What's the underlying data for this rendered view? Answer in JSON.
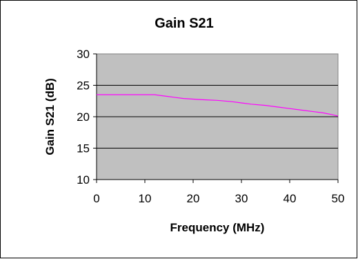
{
  "chart_data": {
    "type": "line",
    "title": "Gain S21",
    "xlabel": "Frequency (MHz)",
    "ylabel": "Gain S21 (dB)",
    "xlim": [
      0,
      50
    ],
    "ylim": [
      10,
      30
    ],
    "x_ticks": [
      "0",
      "10",
      "20",
      "30",
      "40",
      "50"
    ],
    "y_ticks": [
      "10",
      "15",
      "20",
      "25",
      "30"
    ],
    "grid": "horizontal major gridlines",
    "legend": "none",
    "plot_background": "#c0c0c0",
    "series": [
      {
        "color": "#ff00ff",
        "x": [
          0,
          2,
          5,
          8,
          10,
          12,
          15,
          18,
          20,
          22,
          25,
          28,
          30,
          32,
          35,
          38,
          40,
          42,
          45,
          47,
          49,
          50
        ],
        "y": [
          23.5,
          23.5,
          23.5,
          23.5,
          23.5,
          23.5,
          23.2,
          22.9,
          22.8,
          22.7,
          22.6,
          22.4,
          22.2,
          22.0,
          21.8,
          21.5,
          21.3,
          21.1,
          20.8,
          20.6,
          20.3,
          20.1
        ]
      }
    ]
  }
}
